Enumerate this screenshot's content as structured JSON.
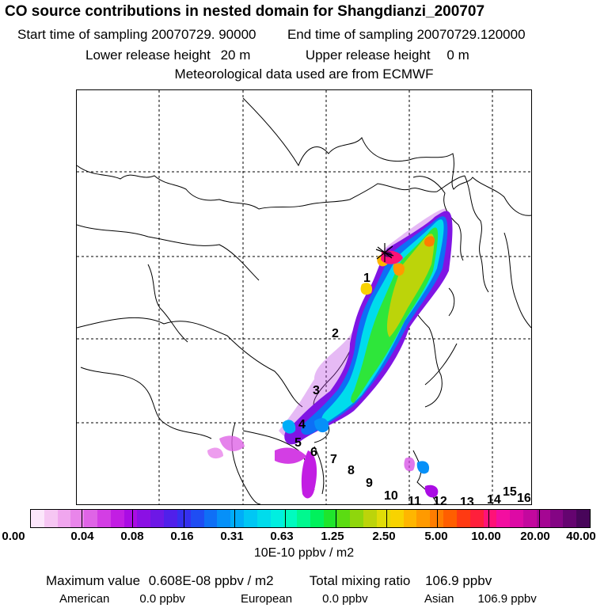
{
  "header": {
    "title": "CO  source contributions in nested domain for Shangdianzi_200707",
    "start_label": "Start time of sampling",
    "start_value": "20070729. 90000",
    "end_label": "End time of sampling",
    "end_value": "20070729.120000",
    "lower_label": "Lower release height",
    "lower_value": "20 m",
    "upper_label": "Upper release height",
    "upper_value": "0 m",
    "met_text": "Meteorological data used are from ECMWF"
  },
  "map": {
    "segment_labels": [
      "1",
      "2",
      "3",
      "4",
      "5",
      "6",
      "7",
      "8",
      "9",
      "10",
      "11",
      "12",
      "13",
      "14",
      "15",
      "16"
    ]
  },
  "colorbar": {
    "tick_labels": [
      "0.00",
      "0.04",
      "0.08",
      "0.16",
      "0.31",
      "0.63",
      "1.25",
      "2.50",
      "5.00",
      "10.00",
      "20.00",
      "40.00"
    ],
    "units": "10E-10 ppbv / m2",
    "colors": [
      "#fce6fb",
      "#f6c6f3",
      "#f0a6ee",
      "#e985ea",
      "#df64e6",
      "#d33ee4",
      "#c21ee3",
      "#aa0ce4",
      "#8b10e4",
      "#6d18e6",
      "#5020ea",
      "#3530ef",
      "#1f4df3",
      "#0f6ff6",
      "#0690f8",
      "#00adf8",
      "#00c7f4",
      "#00dcec",
      "#00efe0",
      "#00fbbf",
      "#00f88f",
      "#00f15c",
      "#1fe52c",
      "#5bdc12",
      "#8fd60c",
      "#bcd40a",
      "#e0dc08",
      "#f8d300",
      "#ffb600",
      "#ff9a00",
      "#ff7d00",
      "#ff5e00",
      "#ff3a12",
      "#ff1f3b",
      "#ff1277",
      "#f30ea0",
      "#dd0aa5",
      "#c3089e",
      "#a50693",
      "#840584",
      "#650470",
      "#48055a"
    ]
  },
  "stats": {
    "max_label": "Maximum value",
    "max_value": "0.608E-08 ppbv / m2",
    "total_label": "Total mixing ratio",
    "total_value": "106.9 ppbv",
    "american_label": "American",
    "american_value": "0.0 ppbv",
    "european_label": "European",
    "european_value": "0.0 ppbv",
    "asian_label": "Asian",
    "asian_value": "106.9 ppbv"
  }
}
